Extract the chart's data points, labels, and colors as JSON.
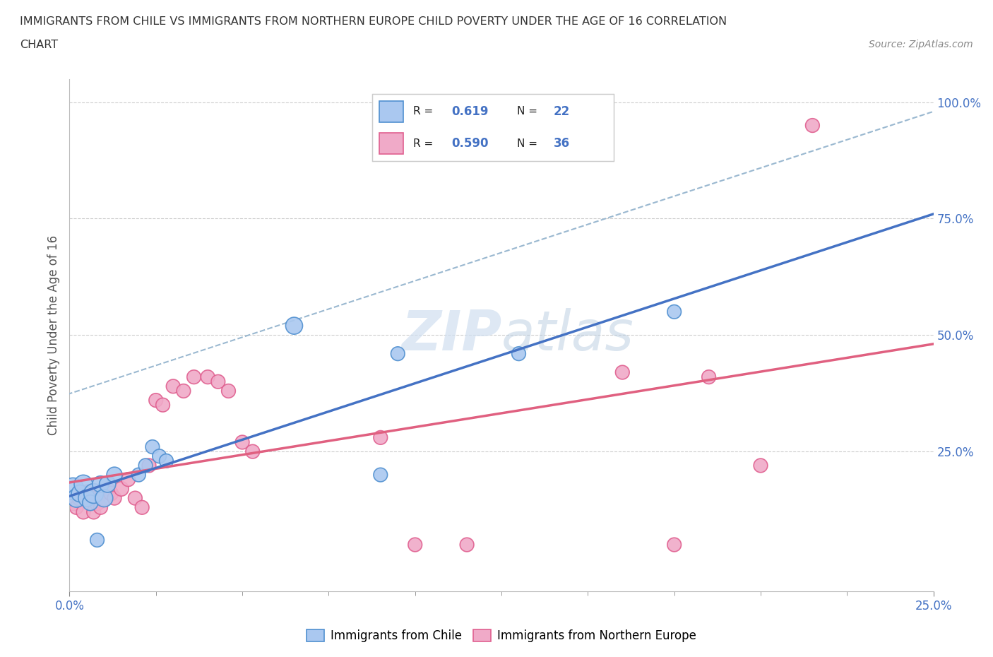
{
  "title_line1": "IMMIGRANTS FROM CHILE VS IMMIGRANTS FROM NORTHERN EUROPE CHILD POVERTY UNDER THE AGE OF 16 CORRELATION",
  "title_line2": "CHART",
  "source_text": "Source: ZipAtlas.com",
  "ylabel": "Child Poverty Under the Age of 16",
  "xlim": [
    0.0,
    0.25
  ],
  "ylim": [
    -0.05,
    1.05
  ],
  "ytick_labels": [
    "25.0%",
    "50.0%",
    "75.0%",
    "100.0%"
  ],
  "ytick_positions": [
    0.25,
    0.5,
    0.75,
    1.0
  ],
  "xtick_major": [
    0.0,
    0.25
  ],
  "xtick_minor": [
    0.025,
    0.05,
    0.075,
    0.1,
    0.125,
    0.15,
    0.175,
    0.2,
    0.225
  ],
  "r_chile": 0.619,
  "n_chile": 22,
  "r_northern": 0.59,
  "n_northern": 36,
  "color_chile_fill": "#aac8f0",
  "color_chile_edge": "#5090d0",
  "color_northern_fill": "#f0aac8",
  "color_northern_edge": "#e06090",
  "color_chile_line": "#4472c4",
  "color_northern_line": "#e06080",
  "color_dashed": "#9ab8d0",
  "watermark_color": "#d0dff0",
  "chile_x": [
    0.001,
    0.002,
    0.003,
    0.004,
    0.005,
    0.006,
    0.007,
    0.008,
    0.009,
    0.01,
    0.011,
    0.013,
    0.02,
    0.022,
    0.024,
    0.026,
    0.028,
    0.065,
    0.09,
    0.095,
    0.13,
    0.175
  ],
  "chile_y": [
    0.17,
    0.15,
    0.16,
    0.18,
    0.15,
    0.14,
    0.16,
    0.06,
    0.18,
    0.15,
    0.18,
    0.2,
    0.2,
    0.22,
    0.26,
    0.24,
    0.23,
    0.52,
    0.2,
    0.46,
    0.46,
    0.55
  ],
  "chile_sizes": [
    500,
    350,
    300,
    350,
    300,
    250,
    400,
    200,
    280,
    320,
    280,
    250,
    200,
    200,
    200,
    200,
    200,
    300,
    200,
    200,
    200,
    200
  ],
  "northern_x": [
    0.001,
    0.002,
    0.003,
    0.004,
    0.005,
    0.006,
    0.007,
    0.008,
    0.009,
    0.01,
    0.011,
    0.012,
    0.013,
    0.015,
    0.017,
    0.019,
    0.021,
    0.023,
    0.025,
    0.027,
    0.03,
    0.033,
    0.036,
    0.04,
    0.043,
    0.046,
    0.05,
    0.053,
    0.09,
    0.1,
    0.115,
    0.16,
    0.175,
    0.185,
    0.2,
    0.215
  ],
  "northern_y": [
    0.14,
    0.13,
    0.15,
    0.12,
    0.16,
    0.15,
    0.12,
    0.14,
    0.13,
    0.15,
    0.17,
    0.16,
    0.15,
    0.17,
    0.19,
    0.15,
    0.13,
    0.22,
    0.36,
    0.35,
    0.39,
    0.38,
    0.41,
    0.41,
    0.4,
    0.38,
    0.27,
    0.25,
    0.28,
    0.05,
    0.05,
    0.42,
    0.05,
    0.41,
    0.22,
    0.95
  ],
  "northern_sizes": [
    250,
    200,
    250,
    200,
    300,
    250,
    200,
    250,
    200,
    250,
    200,
    220,
    200,
    220,
    200,
    200,
    200,
    200,
    200,
    200,
    200,
    200,
    200,
    200,
    200,
    200,
    200,
    200,
    200,
    200,
    200,
    200,
    200,
    200,
    200,
    200
  ]
}
